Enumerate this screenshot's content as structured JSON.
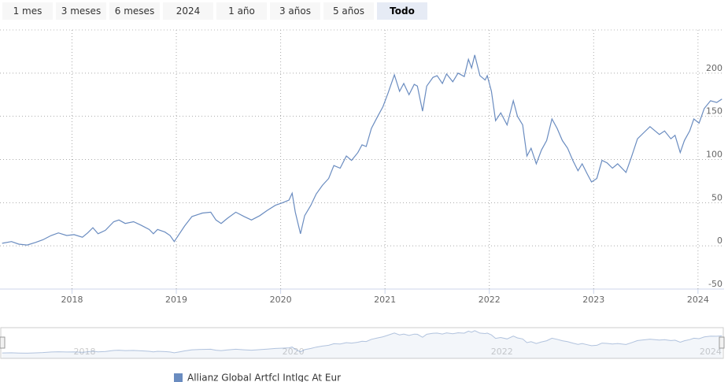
{
  "range_selector": {
    "buttons": [
      "1 mes",
      "3 meses",
      "6 meses",
      "2024",
      "1 año",
      "3 años",
      "5 años",
      "Todo"
    ],
    "selected": 7
  },
  "chart_data": {
    "type": "line",
    "grid": true,
    "xlim": [
      2017.31,
      2024.25
    ],
    "xticks": [
      2018,
      2019,
      2020,
      2021,
      2022,
      2023,
      2024
    ],
    "ylim": [
      -50,
      250
    ],
    "yticks": [
      -50,
      0,
      50,
      100,
      150,
      200
    ],
    "x": [
      2017.33,
      2017.42,
      2017.49,
      2017.57,
      2017.65,
      2017.72,
      2017.8,
      2017.87,
      2017.95,
      2018.02,
      2018.1,
      2018.15,
      2018.2,
      2018.25,
      2018.32,
      2018.4,
      2018.45,
      2018.51,
      2018.59,
      2018.66,
      2018.74,
      2018.78,
      2018.82,
      2018.89,
      2018.94,
      2018.98,
      2019.03,
      2019.08,
      2019.15,
      2019.25,
      2019.33,
      2019.38,
      2019.43,
      2019.49,
      2019.57,
      2019.65,
      2019.72,
      2019.8,
      2019.87,
      2019.95,
      2020.02,
      2020.08,
      2020.11,
      2020.14,
      2020.19,
      2020.23,
      2020.29,
      2020.34,
      2020.4,
      2020.46,
      2020.51,
      2020.57,
      2020.63,
      2020.68,
      2020.74,
      2020.78,
      2020.82,
      2020.87,
      2020.93,
      2020.98,
      2021.03,
      2021.09,
      2021.14,
      2021.18,
      2021.23,
      2021.28,
      2021.31,
      2021.36,
      2021.4,
      2021.46,
      2021.5,
      2021.55,
      2021.59,
      2021.65,
      2021.7,
      2021.76,
      2021.8,
      2021.83,
      2021.86,
      2021.91,
      2021.96,
      2021.98,
      2022.02,
      2022.06,
      2022.11,
      2022.17,
      2022.23,
      2022.27,
      2022.32,
      2022.36,
      2022.4,
      2022.45,
      2022.5,
      2022.55,
      2022.6,
      2022.65,
      2022.7,
      2022.75,
      2022.8,
      2022.85,
      2022.89,
      2022.94,
      2022.98,
      2023.03,
      2023.08,
      2023.13,
      2023.18,
      2023.23,
      2023.31,
      2023.36,
      2023.42,
      2023.48,
      2023.54,
      2023.59,
      2023.63,
      2023.68,
      2023.74,
      2023.78,
      2023.83,
      2023.87,
      2023.92,
      2023.96,
      2024.01,
      2024.06,
      2024.12,
      2024.18,
      2024.23
    ],
    "series": [
      {
        "name": "Allianz Global Artfcl Intlgc At Eur",
        "color": "#6a8cc0",
        "values": [
          3,
          5,
          2,
          1,
          4,
          7,
          12,
          15,
          12,
          13,
          10,
          15,
          21,
          14,
          18,
          28,
          30,
          26,
          28,
          24,
          19,
          14,
          19,
          16,
          12,
          5,
          14,
          23,
          34,
          38,
          39,
          30,
          26,
          32,
          39,
          34,
          30,
          35,
          41,
          47,
          50,
          53,
          61,
          39,
          14,
          35,
          47,
          60,
          70,
          78,
          93,
          90,
          104,
          99,
          108,
          117,
          115,
          136,
          150,
          161,
          177,
          198,
          179,
          188,
          175,
          187,
          185,
          156,
          185,
          195,
          197,
          188,
          199,
          190,
          200,
          196,
          216,
          206,
          221,
          197,
          192,
          197,
          179,
          145,
          154,
          140,
          168,
          150,
          140,
          104,
          113,
          95,
          111,
          122,
          147,
          136,
          122,
          113,
          99,
          87,
          95,
          83,
          74,
          78,
          99,
          96,
          90,
          95,
          85,
          102,
          124,
          131,
          138,
          133,
          129,
          133,
          124,
          128,
          108,
          122,
          133,
          147,
          142,
          159,
          168,
          166,
          170
        ]
      }
    ]
  }
}
